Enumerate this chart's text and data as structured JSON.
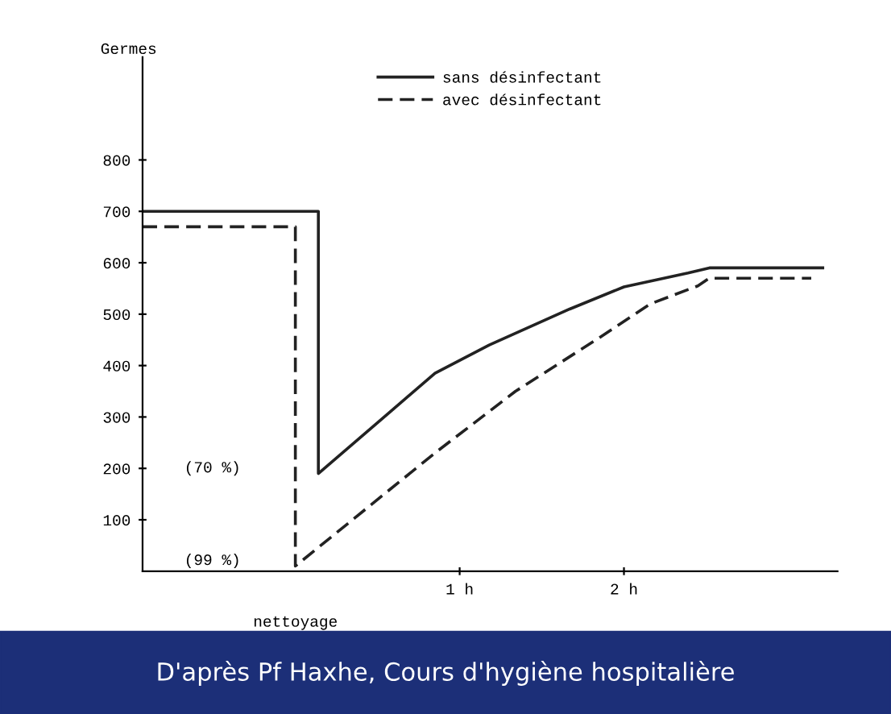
{
  "chart_data": {
    "type": "line",
    "ylabel": "Germes",
    "xlim": [
      -0.93,
      3.3
    ],
    "ylim": [
      0,
      1000
    ],
    "xticks": [
      {
        "value": 1,
        "label": "1 h"
      },
      {
        "value": 2,
        "label": "2 h"
      }
    ],
    "yticks": [
      100,
      200,
      300,
      400,
      500,
      600,
      700,
      800
    ],
    "legend": "top",
    "grid": false,
    "tick_labels": "xy",
    "series": [
      {
        "name": "sans désinfectant",
        "color": "#222222",
        "line_style": "solid",
        "x": [
          -0.93,
          0.14,
          0.14,
          0.85,
          1.18,
          1.67,
          2.0,
          2.39,
          2.52,
          3.21
        ],
        "values": [
          700,
          700,
          190,
          385,
          440,
          510,
          553,
          580,
          590,
          590
        ]
      },
      {
        "name": "avec désinfectant",
        "color": "#222222",
        "line_style": "dashed",
        "x": [
          -0.93,
          0.0,
          0.0,
          0.85,
          1.34,
          1.83,
          2.16,
          2.45,
          2.52,
          3.14
        ],
        "values": [
          670,
          670,
          10,
          230,
          350,
          450,
          520,
          555,
          570,
          570
        ]
      }
    ],
    "annotations": [
      "(70 %)",
      "(99 %)",
      "nettoyage",
      "D'après Pf Haxhe, Cours d'hygiène hospitalière"
    ]
  }
}
